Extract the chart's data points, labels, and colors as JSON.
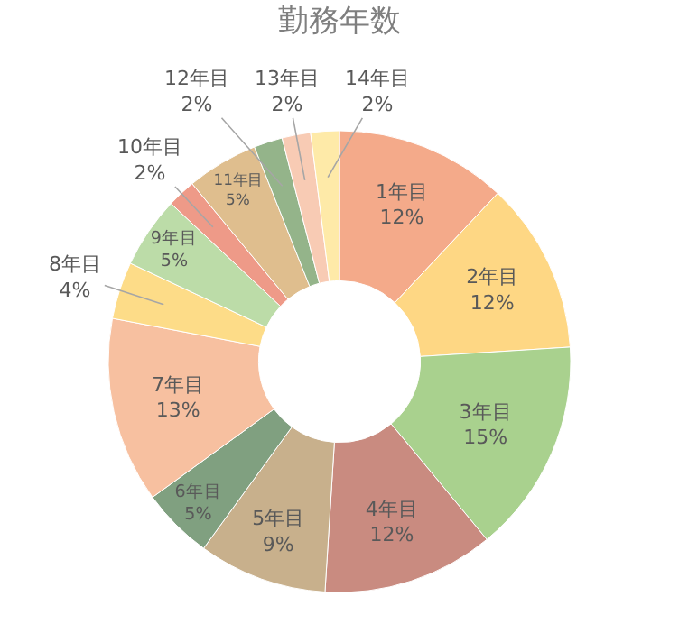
{
  "chart_data": {
    "type": "donut",
    "title": "勤務年数",
    "categories": [
      "1年目",
      "2年目",
      "3年目",
      "4年目",
      "5年目",
      "6年目",
      "7年目",
      "8年目",
      "9年目",
      "10年目",
      "11年目",
      "12年目",
      "13年目",
      "14年目"
    ],
    "values": [
      12,
      12,
      15,
      12,
      9,
      5,
      13,
      4,
      5,
      2,
      5,
      2,
      2,
      2
    ],
    "value_labels": [
      "12%",
      "12%",
      "15%",
      "12%",
      "9%",
      "5%",
      "13%",
      "4%",
      "5%",
      "2%",
      "5%",
      "2%",
      "2%",
      "2%"
    ],
    "colors": [
      "#f4aa8a",
      "#fed784",
      "#a9d18e",
      "#c98b80",
      "#c8b08c",
      "#80a080",
      "#f7c0a0",
      "#fddc88",
      "#bcdca8",
      "#ee9a88",
      "#dfbe8e",
      "#94b48a",
      "#f8cbb4",
      "#feeaa8"
    ],
    "legend": false
  }
}
